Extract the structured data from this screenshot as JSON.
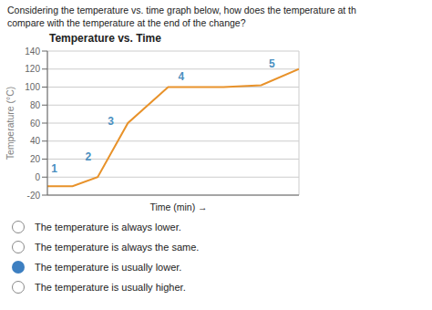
{
  "chart_data": {
    "type": "line",
    "title": "Temperature vs. Time",
    "question": [
      "Considering the temperature vs. time graph below, how does the temperature at th",
      "compare with the temperature at the end of the change?"
    ],
    "xlabel": "Time (min) →",
    "ylabel": "Temperature (°C)",
    "x": [
      0,
      1.0,
      2.0,
      3.2,
      4.8,
      7.0,
      8.5,
      10
    ],
    "values": [
      -10,
      -10,
      0,
      60,
      100,
      100,
      102,
      120
    ],
    "color": "#e8922a",
    "xlim": [
      0,
      10
    ],
    "ylim": [
      -20,
      140
    ],
    "xticks": [
      0,
      2,
      4,
      6,
      8,
      10
    ],
    "yticks": [
      -20,
      0,
      20,
      40,
      60,
      80,
      100,
      120,
      140
    ],
    "grid": true,
    "tick_labels": "y",
    "annotations": [
      {
        "text": "1",
        "x": 0.15,
        "y": 5,
        "color": "#4a8fc0"
      },
      {
        "text": "2",
        "x": 1.5,
        "y": 18,
        "color": "#4a8fc0"
      },
      {
        "text": "3",
        "x": 2.4,
        "y": 58,
        "color": "#4a8fc0"
      },
      {
        "text": "4",
        "x": 5.2,
        "y": 108,
        "color": "#4a8fc0"
      },
      {
        "text": "5",
        "x": 8.8,
        "y": 122,
        "color": "#4a8fc0"
      }
    ],
    "options": [
      {
        "text": "The temperature is always lower.",
        "selected": false
      },
      {
        "text": "The temperature is always the same.",
        "selected": false
      },
      {
        "text": "The temperature is usually lower.",
        "selected": true
      },
      {
        "text": "The temperature is usually higher.",
        "selected": false
      }
    ]
  }
}
